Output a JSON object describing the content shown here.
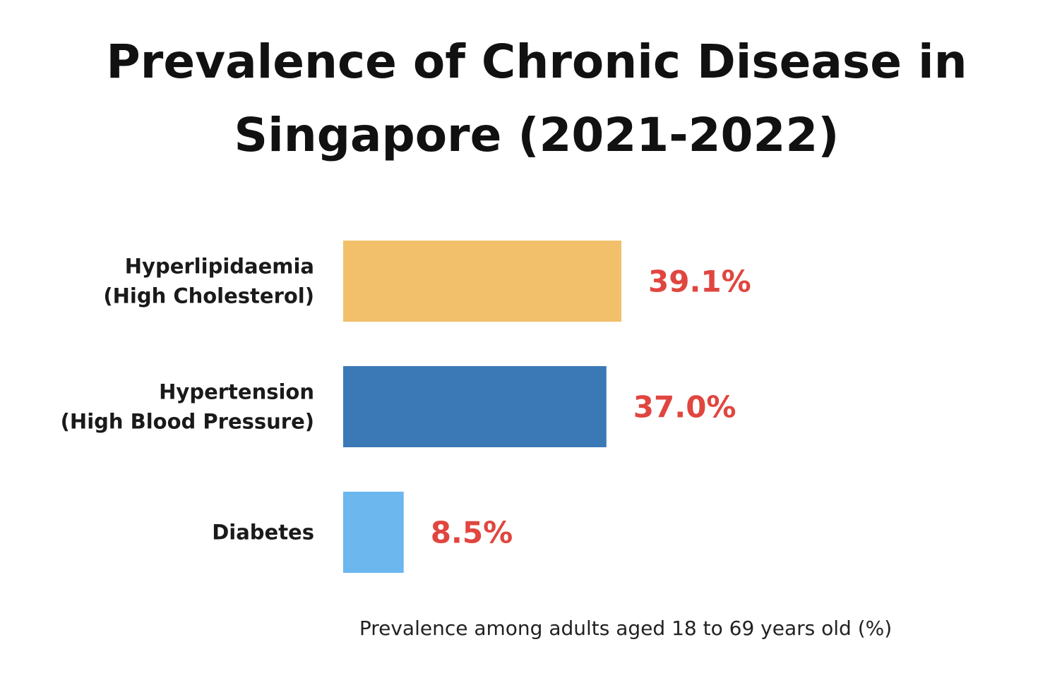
{
  "chart_data": {
    "type": "bar",
    "orientation": "horizontal",
    "title": "Prevalence of Chronic Disease in Singapore (2021-2022)",
    "title_lines": [
      "Prevalence of Chronic Disease in",
      "Singapore (2021-2022)"
    ],
    "categories": [
      {
        "name": "Hyperlipidaemia (High Cholesterol)",
        "lines": [
          "Hyperlipidaemia",
          "(High Cholesterol)"
        ]
      },
      {
        "name": "Hypertension (High Blood Pressure)",
        "lines": [
          "Hypertension",
          "(High Blood Pressure)"
        ]
      },
      {
        "name": "Diabetes",
        "lines": [
          "Diabetes"
        ]
      }
    ],
    "values": [
      39.1,
      37.0,
      8.5
    ],
    "value_labels": [
      "39.1%",
      "37.0%",
      "8.5%"
    ],
    "bar_colors": [
      "#F2C06A",
      "#3A79B6",
      "#6BB7EE"
    ],
    "value_label_color": "#E0463F",
    "xlabel": "Prevalence among adults aged 18 to 69 years old (%)",
    "ylabel": "",
    "xlim": [
      0,
      39.1
    ],
    "grid": false,
    "legend": "none"
  }
}
